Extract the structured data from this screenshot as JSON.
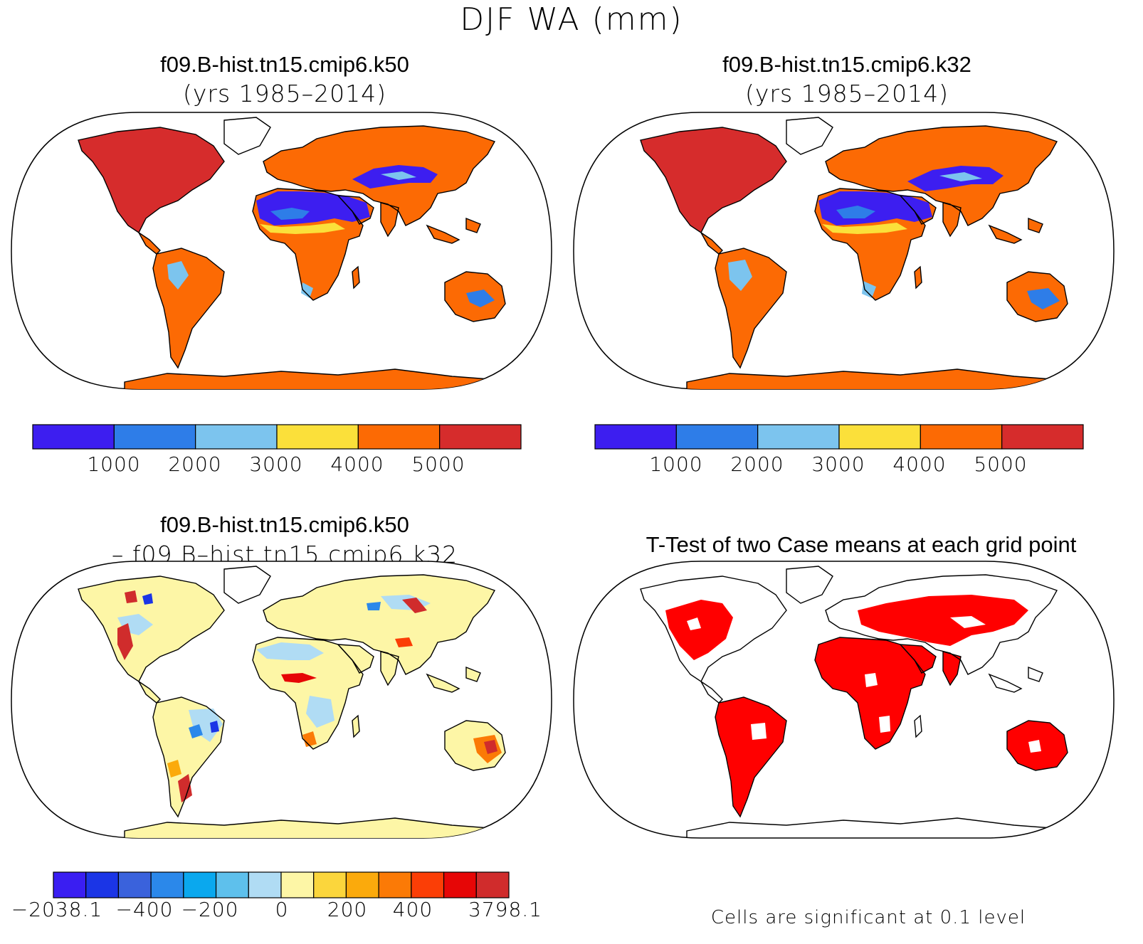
{
  "title": "DJF WA (mm)",
  "panels": {
    "top_left": {
      "title": "f09.B-hist.tn15.cmip6.k50",
      "subtitle": "(yrs 1985–2014)"
    },
    "top_right": {
      "title": "f09.B-hist.tn15.cmip6.k32",
      "subtitle": "(yrs 1985–2014)"
    },
    "bottom_left": {
      "title": "f09.B-hist.tn15.cmip6.k50",
      "subtitle": "– f09.B–hist.tn15.cmip6.k32"
    },
    "bottom_right": {
      "title": "T-Test of two Case means at each grid point",
      "note": "Cells are significant at 0.1 level"
    }
  },
  "colorbar_abs": {
    "colors": [
      "#3d1ef0",
      "#2e7de8",
      "#7cc4ee",
      "#fbe03a",
      "#fc6a04",
      "#d62c2c"
    ],
    "labels": [
      "1000",
      "2000",
      "3000",
      "4000",
      "5000"
    ]
  },
  "colorbar_diff": {
    "colors": [
      "#3a1ef2",
      "#1b35e6",
      "#3a62dc",
      "#2b88ea",
      "#0aa8ee",
      "#5ec0ec",
      "#b0dcf4",
      "#fdf6a6",
      "#fbd63c",
      "#fbaa0c",
      "#fb7a06",
      "#fb3e06",
      "#e60606",
      "#d02c2c"
    ],
    "labels": [
      "−2038.1",
      "−400",
      "−200",
      "0",
      "200",
      "400",
      "3798.1"
    ]
  },
  "significance_color": "#ff0000"
}
